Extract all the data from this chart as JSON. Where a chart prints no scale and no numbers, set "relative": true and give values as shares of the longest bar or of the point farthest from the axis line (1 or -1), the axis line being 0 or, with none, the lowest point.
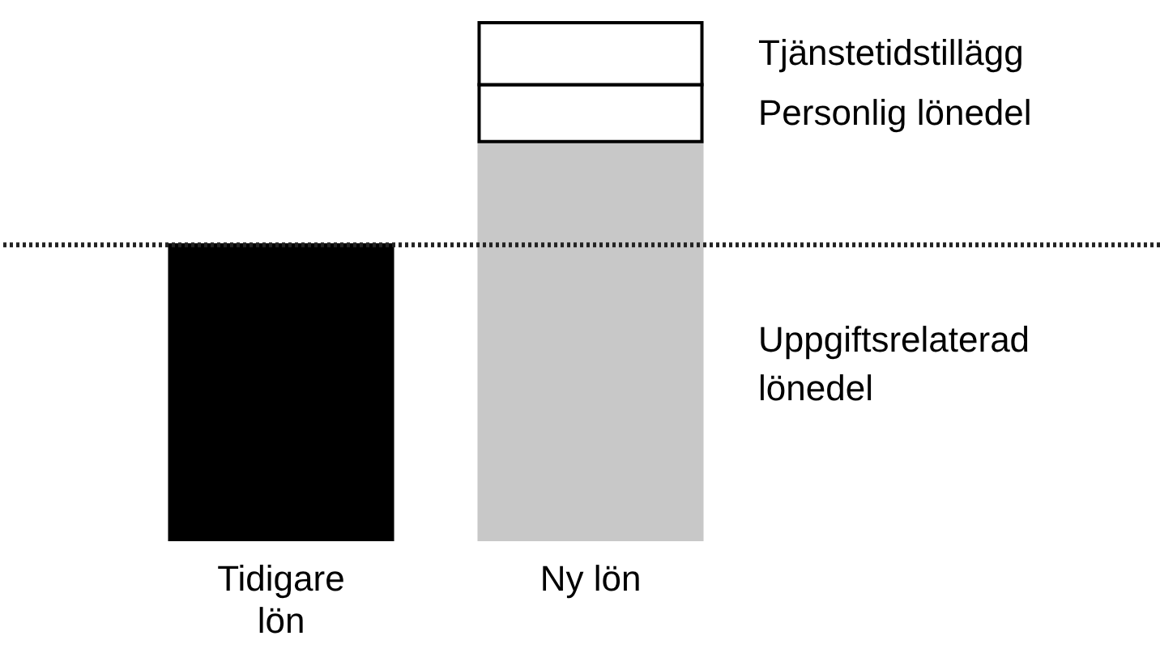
{
  "chart_data": {
    "type": "bar",
    "relative": true,
    "stacked": true,
    "legend": false,
    "categories": [
      "Tidigare lön",
      "Ny lön"
    ],
    "series": [
      {
        "color": "#000000",
        "values": [
          0.57,
          null
        ]
      },
      {
        "name": "Uppgiftsrelaterad lönedel",
        "color": "#c8c8c8",
        "values": [
          null,
          0.77
        ]
      },
      {
        "name": "Personlig lönedel",
        "color": "#ffffff",
        "values": [
          null,
          0.11
        ]
      },
      {
        "name": "Tjänstetidstillägg",
        "color": "#ffffff",
        "values": [
          null,
          0.12
        ]
      }
    ],
    "ref_lines": [
      {
        "axis": "y",
        "value": 0.57,
        "line_style": "dotted"
      }
    ]
  }
}
